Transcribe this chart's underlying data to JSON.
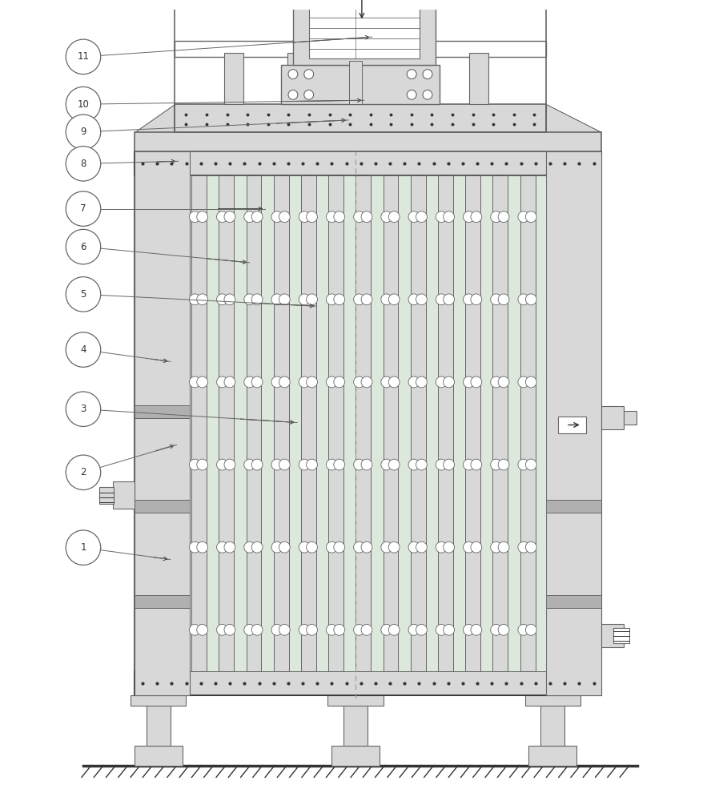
{
  "bg_color": "#ffffff",
  "line_color": "#666666",
  "dark_line": "#333333",
  "light_gray": "#d8d8d8",
  "medium_gray": "#b0b0b0",
  "green_fill": "#dce8dc",
  "border_color": "#888888"
}
